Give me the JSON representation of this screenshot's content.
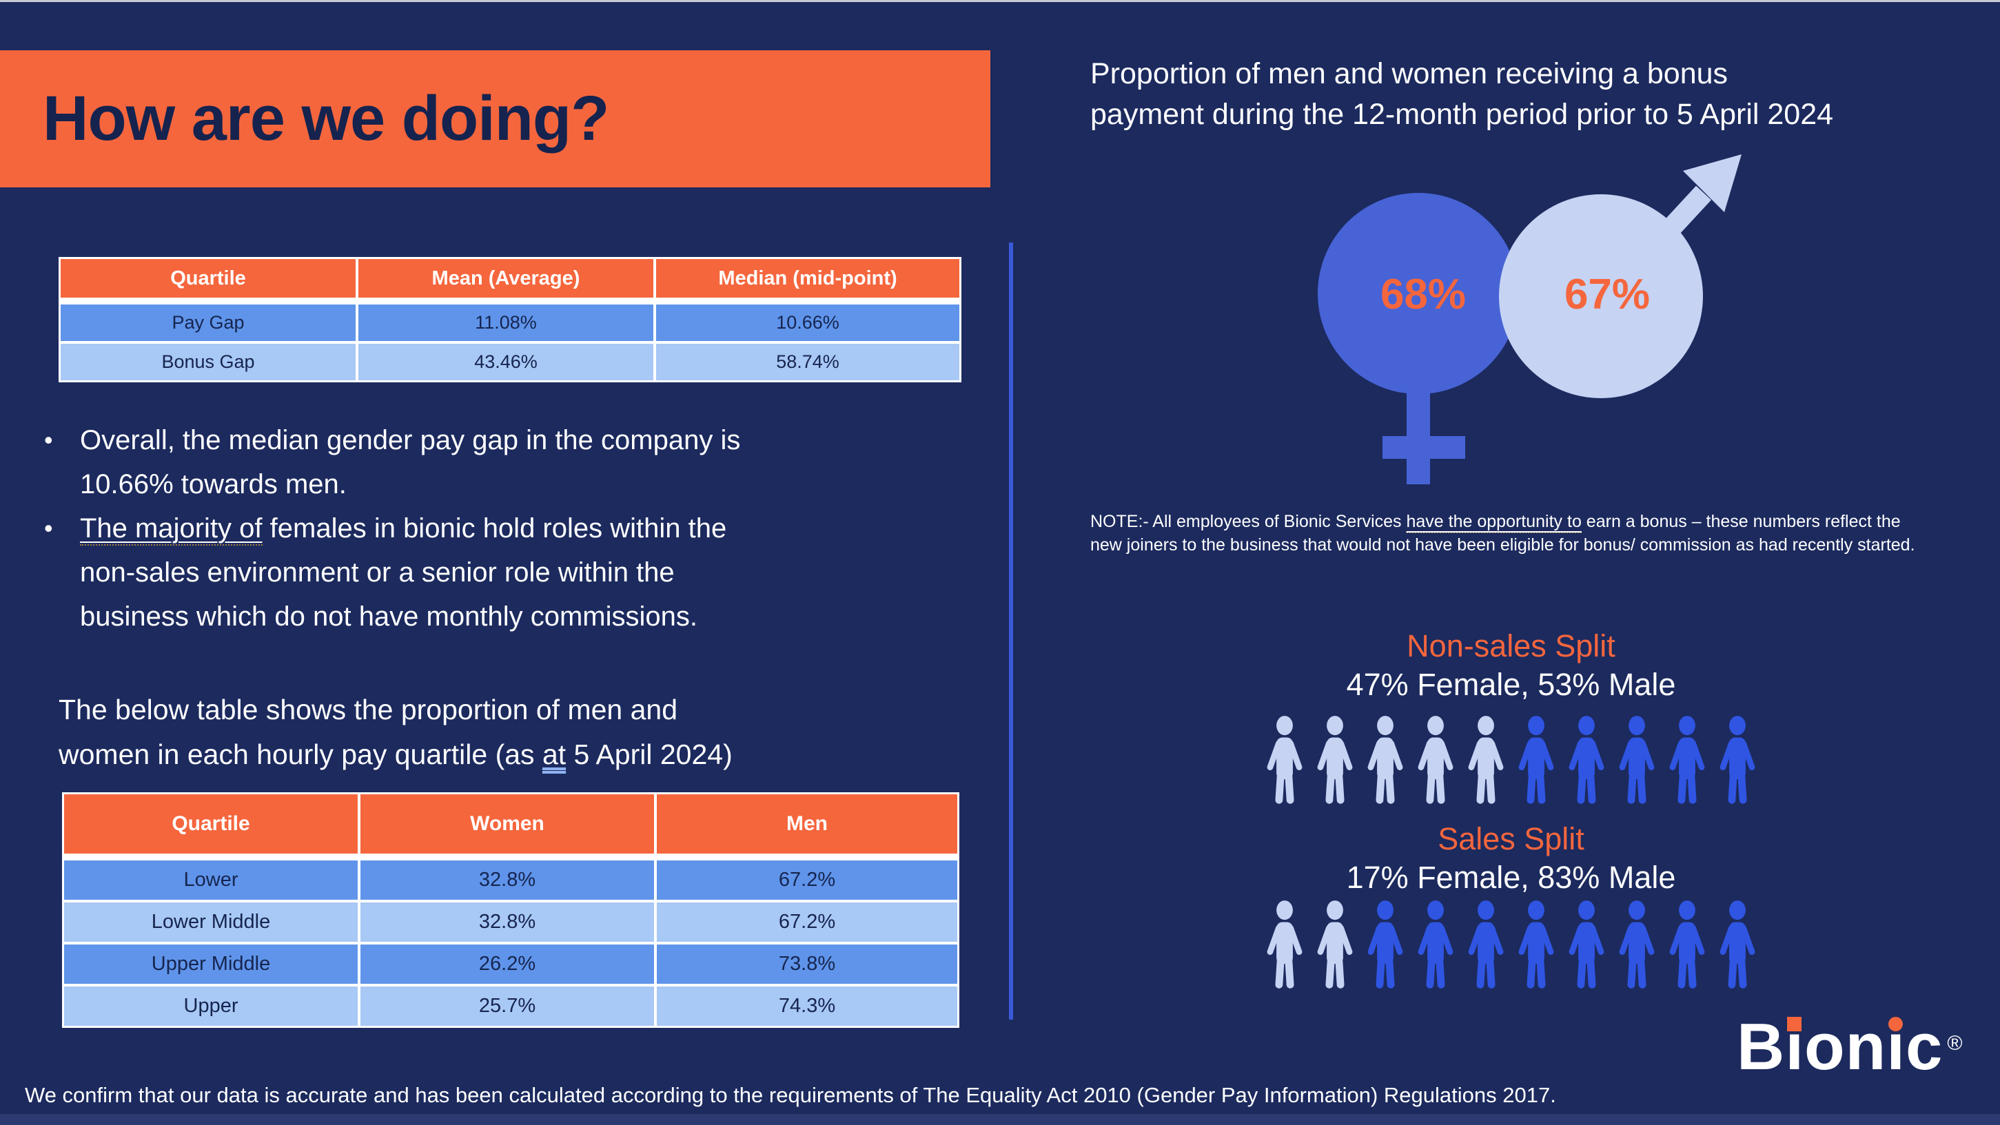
{
  "page": {
    "title": "How are we doing?",
    "footer": "We confirm that our data is accurate and has been calculated according to the requirements of The Equality Act 2010 (Gender Pay Information) Regulations 2017."
  },
  "colors": {
    "background_navy": "#1C2A5E",
    "accent_orange": "#F5663D",
    "table_row_medium_blue": "#5F94EA",
    "table_row_light_blue": "#A8C8F5",
    "person_royal_blue": "#2F55E2",
    "female_symbol_blue": "#4763D6",
    "male_symbol_periwinkle": "#C6D3F3",
    "divider_blue": "#3A5BD9",
    "text_white": "#FFFFFF",
    "text_navy": "#16254F"
  },
  "gap_table": {
    "headers": [
      "Quartile",
      "Mean (Average)",
      "Median (mid-point)"
    ],
    "rows": [
      [
        "Pay Gap",
        "11.08%",
        "10.66%"
      ],
      [
        "Bonus Gap",
        "43.46%",
        "58.74%"
      ]
    ]
  },
  "bullets": [
    {
      "parts": [
        {
          "t": "Overall, the median gender pay gap in the company is"
        },
        {
          "br": true
        },
        {
          "t": "10.66% towards men."
        }
      ]
    },
    {
      "parts": [
        {
          "t": "The majority of",
          "u": "grammar"
        },
        {
          "t": " females in bionic hold roles within the"
        },
        {
          "br": true
        },
        {
          "t": "non-sales environment or a senior role within the"
        },
        {
          "br": true
        },
        {
          "t": "business which do not have monthly commissions."
        }
      ]
    }
  ],
  "quartile_intro": {
    "parts": [
      {
        "t": "The below table shows the proportion of men and"
      },
      {
        "br": true
      },
      {
        "t": "women in each hourly pay quartile (as "
      },
      {
        "t": "at",
        "u": "double"
      },
      {
        "t": " 5 April 2024)"
      }
    ]
  },
  "quartile_table": {
    "headers": [
      "Quartile",
      "Women",
      "Men"
    ],
    "rows": [
      [
        "Lower",
        "32.8%",
        "67.2%"
      ],
      [
        "Lower Middle",
        "32.8%",
        "67.2%"
      ],
      [
        "Upper Middle",
        "26.2%",
        "73.8%"
      ],
      [
        "Upper",
        "25.7%",
        "74.3%"
      ]
    ]
  },
  "bonus": {
    "heading_lines": [
      {
        "t": "Proportion of men and women receiving a bonus"
      },
      {
        "br": true
      },
      {
        "t": "payment during the 12-month period prior to 5 April 2024"
      }
    ],
    "female_pct": "68%",
    "male_pct": "67%",
    "note_parts": [
      {
        "t": "NOTE:- All employees of Bionic Services "
      },
      {
        "t": "have the opportunity to",
        "u": "grammar"
      },
      {
        "t": " earn a bonus – these numbers reflect the"
      },
      {
        "br": true
      },
      {
        "t": "new joiners to the business that would not have been eligible for bonus/ commission as had recently started."
      }
    ]
  },
  "splits": [
    {
      "title": "Non-sales Split",
      "subtitle": "47% Female, 53% Male",
      "female_icons": 5,
      "male_icons": 5
    },
    {
      "title": "Sales Split",
      "subtitle": "17% Female, 83% Male",
      "female_icons": 2,
      "male_icons": 8
    }
  ],
  "logo": {
    "letters": [
      {
        "ch": "B"
      },
      {
        "ch": "ı",
        "dot": "square"
      },
      {
        "ch": "o"
      },
      {
        "ch": "n"
      },
      {
        "ch": "ı",
        "dot": "round"
      },
      {
        "ch": "c"
      }
    ],
    "registered": "®"
  },
  "chart_data": [
    {
      "type": "table",
      "title": "Gender pay gap and bonus gap",
      "columns": [
        "Quartile",
        "Mean (Average)",
        "Median (mid-point)"
      ],
      "rows": [
        [
          "Pay Gap",
          "11.08%",
          "10.66%"
        ],
        [
          "Bonus Gap",
          "43.46%",
          "58.74%"
        ]
      ]
    },
    {
      "type": "pictogram",
      "title": "Proportion of men and women receiving a bonus payment during the 12-month period prior to 5 April 2024",
      "series": [
        {
          "name": "Women",
          "value": 68
        },
        {
          "name": "Men",
          "value": 67
        }
      ],
      "unit": "%"
    },
    {
      "type": "table",
      "title": "Proportion of men and women in each hourly pay quartile (as at 5 April 2024)",
      "columns": [
        "Quartile",
        "Women",
        "Men"
      ],
      "rows": [
        [
          "Lower",
          "32.8%",
          "67.2%"
        ],
        [
          "Lower Middle",
          "32.8%",
          "67.2%"
        ],
        [
          "Upper Middle",
          "26.2%",
          "73.8%"
        ],
        [
          "Upper",
          "25.7%",
          "74.3%"
        ]
      ]
    },
    {
      "type": "pictogram",
      "title": "Non-sales Split",
      "series": [
        {
          "name": "Female",
          "value": 47
        },
        {
          "name": "Male",
          "value": 53
        }
      ],
      "icons": {
        "female": 5,
        "male": 5
      },
      "unit": "%"
    },
    {
      "type": "pictogram",
      "title": "Sales Split",
      "series": [
        {
          "name": "Female",
          "value": 17
        },
        {
          "name": "Male",
          "value": 83
        }
      ],
      "icons": {
        "female": 2,
        "male": 8
      },
      "unit": "%"
    }
  ]
}
